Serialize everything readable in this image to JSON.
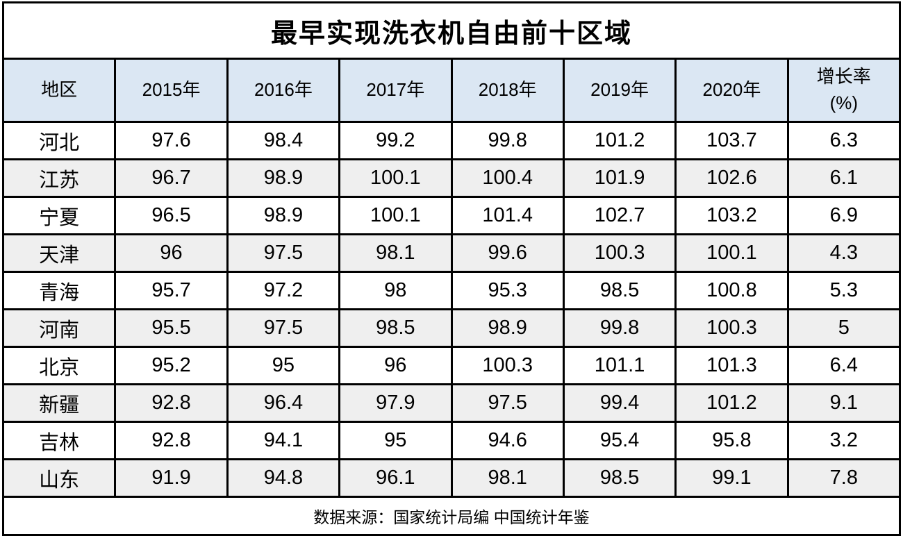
{
  "title": "最早实现洗衣机自由前十区域",
  "source": "数据来源：国家统计局编 中国统计年鉴",
  "columns": [
    "地区",
    "2015年",
    "2016年",
    "2017年",
    "2018年",
    "2019年",
    "2020年",
    "增长率\n(%)"
  ],
  "rows": [
    {
      "region": "河北",
      "values": [
        "97.6",
        "98.4",
        "99.2",
        "99.8",
        "101.2",
        "103.7",
        "6.3"
      ]
    },
    {
      "region": "江苏",
      "values": [
        "96.7",
        "98.9",
        "100.1",
        "100.4",
        "101.9",
        "102.6",
        "6.1"
      ]
    },
    {
      "region": "宁夏",
      "values": [
        "96.5",
        "98.9",
        "100.1",
        "101.4",
        "102.7",
        "103.2",
        "6.9"
      ]
    },
    {
      "region": "天津",
      "values": [
        "96",
        "97.5",
        "98.1",
        "99.6",
        "100.3",
        "100.1",
        "4.3"
      ]
    },
    {
      "region": "青海",
      "values": [
        "95.7",
        "97.2",
        "98",
        "95.3",
        "98.5",
        "100.8",
        "5.3"
      ]
    },
    {
      "region": "河南",
      "values": [
        "95.5",
        "97.5",
        "98.5",
        "98.9",
        "99.8",
        "100.3",
        "5"
      ]
    },
    {
      "region": "北京",
      "values": [
        "95.2",
        "95",
        "96",
        "100.3",
        "101.1",
        "101.3",
        "6.4"
      ]
    },
    {
      "region": "新疆",
      "values": [
        "92.8",
        "96.4",
        "97.9",
        "97.5",
        "99.4",
        "101.2",
        "9.1"
      ]
    },
    {
      "region": "吉林",
      "values": [
        "92.8",
        "94.1",
        "95",
        "94.6",
        "95.4",
        "95.8",
        "3.2"
      ]
    },
    {
      "region": "山东",
      "values": [
        "91.9",
        "94.8",
        "96.1",
        "98.1",
        "98.5",
        "99.1",
        "7.8"
      ]
    }
  ],
  "colors": {
    "header_bg": "#DBE7F3",
    "alt_row_bg": "#EFEFEF",
    "border": "#000000",
    "text": "#000000",
    "background": "#FFFFFF"
  },
  "chart_data": {
    "type": "table",
    "title": "最早实现洗衣机自由前十区域",
    "columns": [
      "地区",
      "2015年",
      "2016年",
      "2017年",
      "2018年",
      "2019年",
      "2020年",
      "增长率(%)"
    ],
    "categories": [
      "河北",
      "江苏",
      "宁夏",
      "天津",
      "青海",
      "河南",
      "北京",
      "新疆",
      "吉林",
      "山东"
    ],
    "series": [
      {
        "name": "2015年",
        "values": [
          97.6,
          96.7,
          96.5,
          96,
          95.7,
          95.5,
          95.2,
          92.8,
          92.8,
          91.9
        ]
      },
      {
        "name": "2016年",
        "values": [
          98.4,
          98.9,
          98.9,
          97.5,
          97.2,
          97.5,
          95,
          96.4,
          94.1,
          94.8
        ]
      },
      {
        "name": "2017年",
        "values": [
          99.2,
          100.1,
          100.1,
          98.1,
          98,
          98.5,
          96,
          97.9,
          95,
          96.1
        ]
      },
      {
        "name": "2018年",
        "values": [
          99.8,
          100.4,
          101.4,
          99.6,
          95.3,
          98.9,
          100.3,
          97.5,
          94.6,
          98.1
        ]
      },
      {
        "name": "2019年",
        "values": [
          101.2,
          101.9,
          102.7,
          100.3,
          98.5,
          99.8,
          101.1,
          99.4,
          95.4,
          98.5
        ]
      },
      {
        "name": "2020年",
        "values": [
          103.7,
          102.6,
          103.2,
          100.1,
          100.8,
          100.3,
          101.3,
          101.2,
          95.8,
          99.1
        ]
      },
      {
        "name": "增长率(%)",
        "values": [
          6.3,
          6.1,
          6.9,
          4.3,
          5.3,
          5,
          6.4,
          9.1,
          3.2,
          7.8
        ]
      }
    ],
    "source_note": "数据来源：国家统计局编 中国统计年鉴",
    "layout": {
      "grid": true,
      "header_fill": "#DBE7F3",
      "zebra_fill": "#EFEFEF"
    }
  }
}
